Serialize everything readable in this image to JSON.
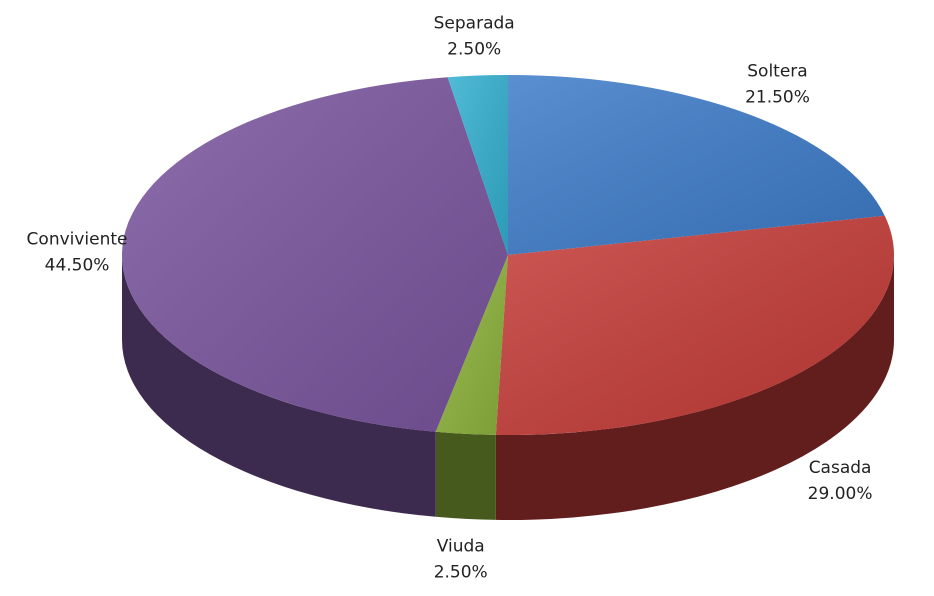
{
  "chart_data": {
    "type": "pie",
    "categories": [
      "Soltera",
      "Casada",
      "Viuda",
      "Conviviente",
      "Separada"
    ],
    "values": [
      21.5,
      29,
      2.5,
      44.5,
      2.5
    ],
    "value_labels": [
      "21.50%",
      "29.00%",
      "2.50%",
      "44.50%",
      "2.50%"
    ],
    "colors": [
      "#3d7cc9",
      "#c43b37",
      "#8db33c",
      "#7a559e",
      "#33b0d0"
    ]
  }
}
